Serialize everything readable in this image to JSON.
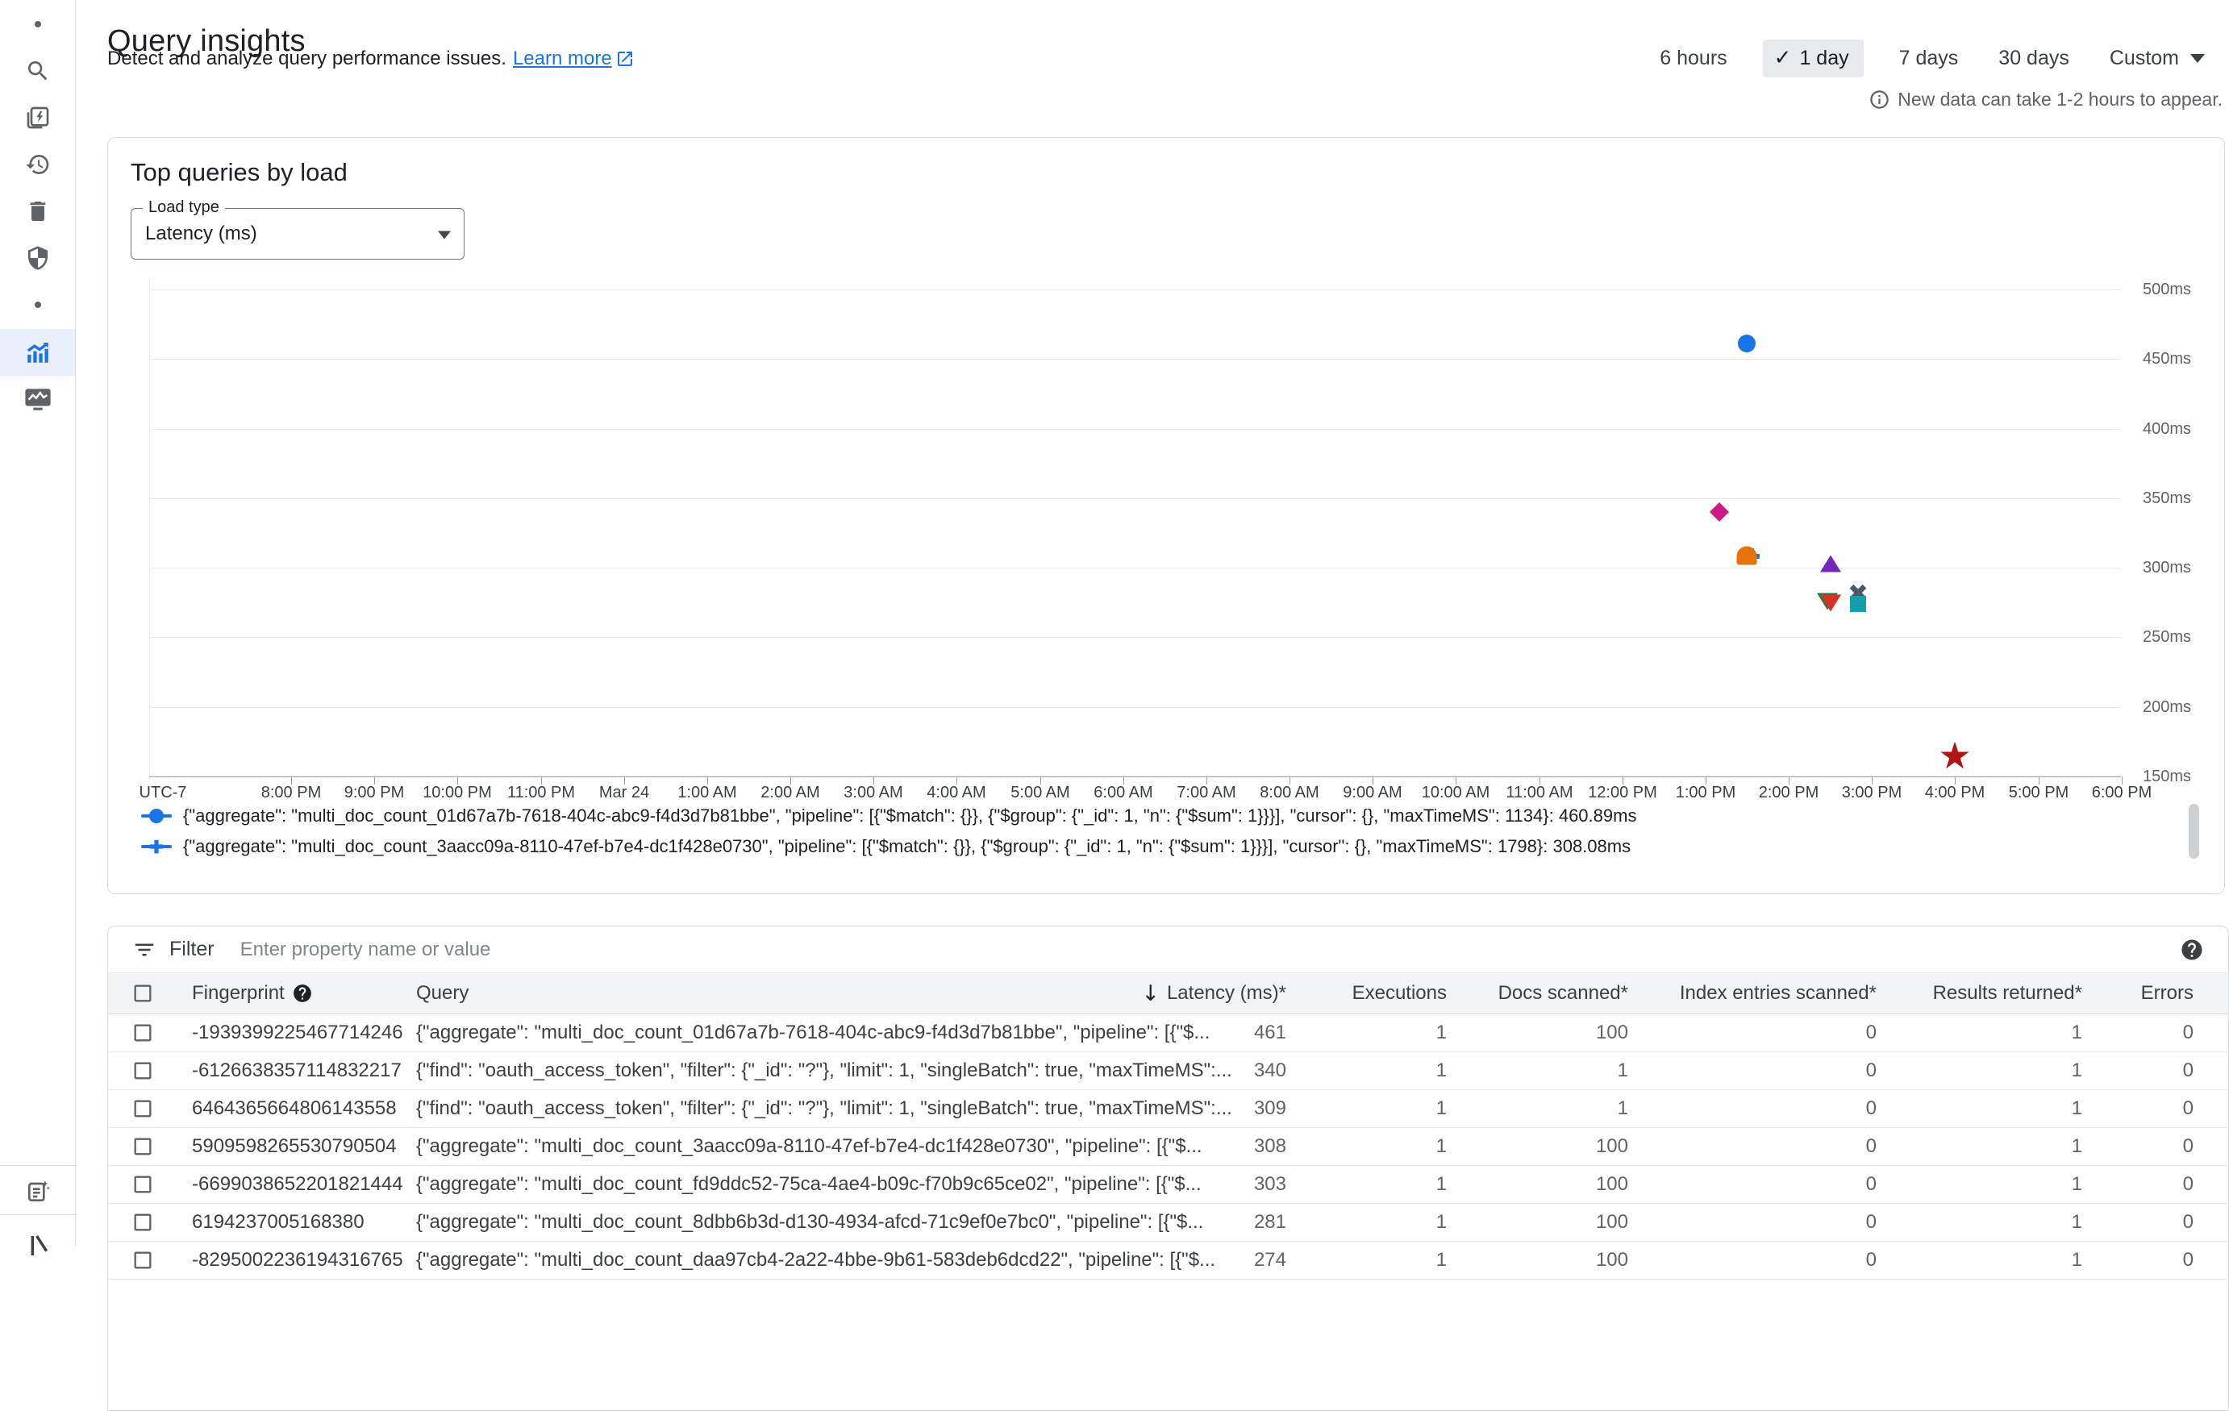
{
  "header": {
    "title": "Query insights",
    "subtitle": "Detect and analyze query performance issues.",
    "learn_more_label": "Learn more",
    "time_ranges": [
      {
        "label": "6 hours",
        "selected": false
      },
      {
        "label": "1 day",
        "selected": true
      },
      {
        "label": "7 days",
        "selected": false
      },
      {
        "label": "30 days",
        "selected": false
      },
      {
        "label": "Custom",
        "selected": false,
        "caret": true
      }
    ],
    "info_note": "New data can take 1-2 hours to appear."
  },
  "sidebar": {
    "icons": [
      "dot",
      "search",
      "flash-documents",
      "history",
      "delete",
      "security-shield",
      "dot",
      "query-insights",
      "monitoring",
      "notes-sparkle",
      "bottom-partial"
    ],
    "active_item": "query-insights",
    "active_color": "#1A73E8",
    "icon_color": "#5F6368"
  },
  "chart_card": {
    "title": "Top queries by load",
    "load_type_label": "Load type",
    "load_type_value": "Latency (ms)"
  },
  "chart_data": {
    "type": "scatter",
    "title": "Top queries by load",
    "y_unit": "ms",
    "ylim": [
      150,
      500
    ],
    "grid": true,
    "y_ticks": [
      {
        "value": 500,
        "label": "500ms"
      },
      {
        "value": 450,
        "label": "450ms"
      },
      {
        "value": 400,
        "label": "400ms"
      },
      {
        "value": 350,
        "label": "350ms"
      },
      {
        "value": 300,
        "label": "300ms"
      },
      {
        "value": 250,
        "label": "250ms"
      },
      {
        "value": 200,
        "label": "200ms"
      },
      {
        "value": 150,
        "label": "150ms"
      }
    ],
    "x_axis": {
      "timezone_label": "UTC-7",
      "ticks": [
        "8:00 PM",
        "9:00 PM",
        "10:00 PM",
        "11:00 PM",
        "Mar 24",
        "1:00 AM",
        "2:00 AM",
        "3:00 AM",
        "4:00 AM",
        "5:00 AM",
        "6:00 AM",
        "7:00 AM",
        "8:00 AM",
        "9:00 AM",
        "10:00 AM",
        "11:00 AM",
        "12:00 PM",
        "1:00 PM",
        "2:00 PM",
        "3:00 PM",
        "4:00 PM",
        "5:00 PM",
        "6:00 PM"
      ]
    },
    "points": [
      {
        "time": "1:30 PM",
        "hours_from_first_tick": 17.5,
        "value_ms": 460.89,
        "marker": "circle",
        "color": "#1A73E8"
      },
      {
        "time": "1:10 PM",
        "hours_from_first_tick": 17.17,
        "value_ms": 340,
        "marker": "diamond",
        "color": "#D01884"
      },
      {
        "time": "1:30 PM",
        "hours_from_first_tick": 17.55,
        "value_ms": 308.08,
        "marker": "plus",
        "color": "#1A73E8"
      },
      {
        "time": "1:30 PM",
        "hours_from_first_tick": 17.5,
        "value_ms": 309,
        "marker": "dome",
        "color": "#E8710A"
      },
      {
        "time": "2:30 PM",
        "hours_from_first_tick": 18.5,
        "value_ms": 303,
        "marker": "triangle-up",
        "color": "#7627BB"
      },
      {
        "time": "2:30 PM",
        "hours_from_first_tick": 18.46,
        "value_ms": 276,
        "marker": "triangle-down",
        "color": "#188038"
      },
      {
        "time": "2:30 PM",
        "hours_from_first_tick": 18.5,
        "value_ms": 274.5,
        "marker": "triangle-down",
        "color": "#D93025"
      },
      {
        "time": "2:50 PM",
        "hours_from_first_tick": 18.83,
        "value_ms": 281,
        "marker": "x",
        "color": "#455A64"
      },
      {
        "time": "2:50 PM",
        "hours_from_first_tick": 18.83,
        "value_ms": 274,
        "marker": "square",
        "color": "#129EAF"
      },
      {
        "time": "4:00 PM",
        "hours_from_first_tick": 20.0,
        "value_ms": 165,
        "marker": "star",
        "color": "#B31412"
      }
    ],
    "legend_position": "bottom-left",
    "legend": [
      {
        "marker": "circle",
        "color": "#1A73E8",
        "text": "{\"aggregate\": \"multi_doc_count_01d67a7b-7618-404c-abc9-f4d3d7b81bbe\", \"pipeline\": [{\"$match\": {}}, {\"$group\": {\"_id\": 1, \"n\": {\"$sum\": 1}}}], \"cursor\": {}, \"maxTimeMS\": 1134}:  460.89ms"
      },
      {
        "marker": "plus",
        "color": "#1A73E8",
        "text": "{\"aggregate\": \"multi_doc_count_3aacc09a-8110-47ef-b7e4-dc1f428e0730\", \"pipeline\": [{\"$match\": {}}, {\"$group\": {\"_id\": 1, \"n\": {\"$sum\": 1}}}], \"cursor\": {}, \"maxTimeMS\": 1798}:  308.08ms"
      }
    ]
  },
  "filter": {
    "label": "Filter",
    "placeholder": "Enter property name or value"
  },
  "table": {
    "columns": [
      {
        "label": "Fingerprint",
        "help": true,
        "align": "left"
      },
      {
        "label": "Query",
        "align": "left"
      },
      {
        "label": "Latency (ms)*",
        "sorted": "desc",
        "align": "right"
      },
      {
        "label": "Executions",
        "align": "right"
      },
      {
        "label": "Docs scanned*",
        "align": "right"
      },
      {
        "label": "Index entries scanned*",
        "align": "right"
      },
      {
        "label": "Results returned*",
        "align": "right"
      },
      {
        "label": "Errors",
        "align": "right"
      }
    ],
    "rows": [
      {
        "fingerprint": "-1939399225467714246",
        "query": "{\"aggregate\": \"multi_doc_count_01d67a7b-7618-404c-abc9-f4d3d7b81bbe\", \"pipeline\": [{\"$...",
        "latency_ms": "461",
        "executions": "1",
        "docs_scanned": "100",
        "index_entries_scanned": "0",
        "results_returned": "1",
        "errors": "0"
      },
      {
        "fingerprint": "-6126638357114832217",
        "query": "{\"find\": \"oauth_access_token\", \"filter\": {\"_id\": \"?\"}, \"limit\": 1, \"singleBatch\": true, \"maxTimeMS\":...",
        "latency_ms": "340",
        "executions": "1",
        "docs_scanned": "1",
        "index_entries_scanned": "0",
        "results_returned": "1",
        "errors": "0"
      },
      {
        "fingerprint": "6464365664806143558",
        "query": "{\"find\": \"oauth_access_token\", \"filter\": {\"_id\": \"?\"}, \"limit\": 1, \"singleBatch\": true, \"maxTimeMS\":...",
        "latency_ms": "309",
        "executions": "1",
        "docs_scanned": "1",
        "index_entries_scanned": "0",
        "results_returned": "1",
        "errors": "0"
      },
      {
        "fingerprint": "5909598265530790504",
        "query": "{\"aggregate\": \"multi_doc_count_3aacc09a-8110-47ef-b7e4-dc1f428e0730\", \"pipeline\": [{\"$...",
        "latency_ms": "308",
        "executions": "1",
        "docs_scanned": "100",
        "index_entries_scanned": "0",
        "results_returned": "1",
        "errors": "0"
      },
      {
        "fingerprint": "-6699038652201821444",
        "query": "{\"aggregate\": \"multi_doc_count_fd9ddc52-75ca-4ae4-b09c-f70b9c65ce02\", \"pipeline\": [{\"$...",
        "latency_ms": "303",
        "executions": "1",
        "docs_scanned": "100",
        "index_entries_scanned": "0",
        "results_returned": "1",
        "errors": "0"
      },
      {
        "fingerprint": "6194237005168380",
        "query": "{\"aggregate\": \"multi_doc_count_8dbb6b3d-d130-4934-afcd-71c9ef0e7bc0\", \"pipeline\": [{\"$...",
        "latency_ms": "281",
        "executions": "1",
        "docs_scanned": "100",
        "index_entries_scanned": "0",
        "results_returned": "1",
        "errors": "0"
      },
      {
        "fingerprint": "-8295002236194316765",
        "query": "{\"aggregate\": \"multi_doc_count_daa97cb4-2a22-4bbe-9b61-583deb6dcd22\", \"pipeline\": [{\"$...",
        "latency_ms": "274",
        "executions": "1",
        "docs_scanned": "100",
        "index_entries_scanned": "0",
        "results_returned": "1",
        "errors": "0"
      }
    ]
  },
  "colors": {
    "accent": "#1A73E8",
    "active_bg": "#E8F0FE",
    "selected_chip_bg": "#E8EAED",
    "border": "#DADCE0",
    "gridline": "#E8EAED",
    "text_secondary": "#5F6368"
  }
}
